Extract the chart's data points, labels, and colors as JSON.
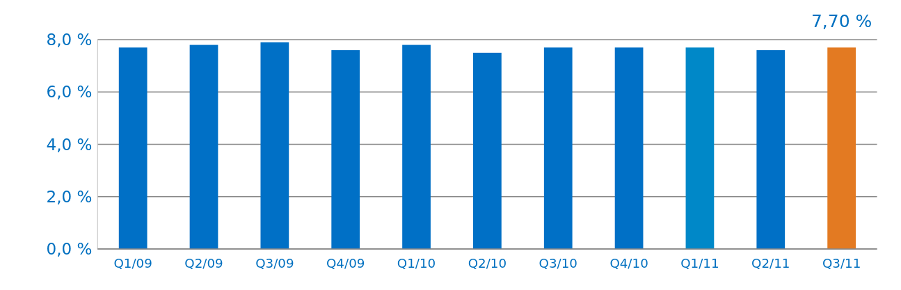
{
  "chart_data": {
    "type": "bar",
    "categories": [
      "Q1/09",
      "Q2/09",
      "Q3/09",
      "Q4/09",
      "Q1/10",
      "Q2/10",
      "Q3/10",
      "Q4/10",
      "Q1/11",
      "Q2/11",
      "Q3/11"
    ],
    "values": [
      7.7,
      7.8,
      7.9,
      7.6,
      7.8,
      7.5,
      7.7,
      7.7,
      7.7,
      7.6,
      7.7
    ],
    "colors": [
      "#0070c6",
      "#0070c6",
      "#0070c6",
      "#0070c6",
      "#0070c6",
      "#0070c6",
      "#0070c6",
      "#0070c6",
      "#0088c8",
      "#0070c6",
      "#e37a22"
    ],
    "value_labels": [
      null,
      null,
      null,
      null,
      null,
      null,
      null,
      null,
      null,
      null,
      "7,70 %"
    ],
    "ylim": [
      0,
      8
    ],
    "yticks": [
      {
        "value": 0,
        "label": "0,0 %"
      },
      {
        "value": 2,
        "label": "2,0 %"
      },
      {
        "value": 4,
        "label": "4,0 %"
      },
      {
        "value": 6,
        "label": "6,0 %"
      },
      {
        "value": 8,
        "label": "8,0 %"
      }
    ],
    "grid": "y"
  }
}
